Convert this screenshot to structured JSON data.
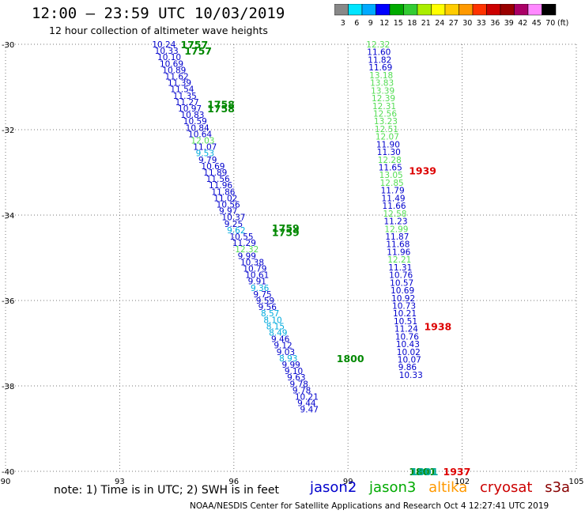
{
  "header": {
    "title": "12:00 – 23:59 UTC 10/03/2019",
    "subtitle": "12 hour collection of altimeter wave heights"
  },
  "color_scale": {
    "labels": [
      "3",
      "6",
      "9",
      "12",
      "15",
      "18",
      "21",
      "24",
      "27",
      "30",
      "33",
      "36",
      "39",
      "42",
      "45",
      "70"
    ],
    "unit": "(ft)",
    "colors": [
      "#888888",
      "#00e5ff",
      "#00aaff",
      "#0000ff",
      "#00aa00",
      "#33cc33",
      "#aaee00",
      "#ffff00",
      "#ffcc00",
      "#ff9900",
      "#ff3300",
      "#cc0000",
      "#990000",
      "#aa0066",
      "#ff88ff",
      "#000000"
    ]
  },
  "footer": {
    "note": "note:  1) Time is in UTC;  2) SWH is in feet",
    "credit": "NOAA/NESDIS Center for Satellite Applications and Research     Oct  4 12:27:41 UTC 2019",
    "legend": [
      {
        "label": "jason2",
        "color": "#0000cc"
      },
      {
        "label": "jason3",
        "color": "#00aa00"
      },
      {
        "label": "altika",
        "color": "#ff9900"
      },
      {
        "label": "cryosat",
        "color": "#cc0000"
      },
      {
        "label": "s3a",
        "color": "#880000"
      }
    ]
  },
  "chart_data": {
    "type": "scatter",
    "title": "",
    "xlabel": "",
    "ylabel": "",
    "xlim": [
      90,
      105
    ],
    "ylim": [
      -40,
      -30
    ],
    "x_ticks": [
      "90",
      "93",
      "96",
      "99",
      "102",
      "105"
    ],
    "y_ticks": [
      "-30",
      "-32",
      "-34",
      "-36",
      "-38",
      "-40"
    ],
    "grid": "dotted",
    "swh_colors": {
      "lt12": "#0000cc",
      "12to15": "#55dd55",
      "lt9": "#00aadd"
    },
    "time_labels": [
      {
        "text": "1757",
        "lon": 94.6,
        "lat": -30.0,
        "color": "#008800"
      },
      {
        "text": "1757",
        "lon": 94.7,
        "lat": -30.15,
        "color": "#008800"
      },
      {
        "text": "1758",
        "lon": 95.3,
        "lat": -31.4,
        "color": "#008800"
      },
      {
        "text": "1758",
        "lon": 95.3,
        "lat": -31.5,
        "color": "#008800"
      },
      {
        "text": "1759",
        "lon": 97.0,
        "lat": -34.3,
        "color": "#008800"
      },
      {
        "text": "1759",
        "lon": 97.0,
        "lat": -34.4,
        "color": "#008800"
      },
      {
        "text": "1800",
        "lon": 98.7,
        "lat": -37.35,
        "color": "#008800"
      },
      {
        "text": "1801",
        "lon": 100.6,
        "lat": -40.0,
        "color": "#008800"
      },
      {
        "text": "1801",
        "lon": 100.65,
        "lat": -40.0,
        "color": "#00aa99"
      },
      {
        "text": "1937",
        "lon": 101.5,
        "lat": -40.0,
        "color": "#dd0000"
      },
      {
        "text": "1938",
        "lon": 101.0,
        "lat": -36.6,
        "color": "#dd0000"
      },
      {
        "text": "1939",
        "lon": 100.6,
        "lat": -32.95,
        "color": "#dd0000"
      }
    ],
    "series": [
      {
        "name": "jason3",
        "points": [
          {
            "lon": 93.85,
            "lat": -30.0,
            "v": "10.24",
            "c": "#0000cc"
          },
          {
            "lon": 93.92,
            "lat": -30.15,
            "v": "10.33",
            "c": "#0000cc"
          },
          {
            "lon": 93.99,
            "lat": -30.3,
            "v": "10.10",
            "c": "#0000cc"
          },
          {
            "lon": 94.05,
            "lat": -30.45,
            "v": "10.69",
            "c": "#0000cc"
          },
          {
            "lon": 94.12,
            "lat": -30.6,
            "v": "10.89",
            "c": "#0000cc"
          },
          {
            "lon": 94.19,
            "lat": -30.75,
            "v": "11.62",
            "c": "#0000cc"
          },
          {
            "lon": 94.26,
            "lat": -30.9,
            "v": "11.39",
            "c": "#0000cc"
          },
          {
            "lon": 94.33,
            "lat": -31.05,
            "v": "11.54",
            "c": "#0000cc"
          },
          {
            "lon": 94.4,
            "lat": -31.2,
            "v": "11.35",
            "c": "#0000cc"
          },
          {
            "lon": 94.46,
            "lat": -31.35,
            "v": "11.27",
            "c": "#0000cc"
          },
          {
            "lon": 94.53,
            "lat": -31.5,
            "v": "10.97",
            "c": "#0000cc"
          },
          {
            "lon": 94.6,
            "lat": -31.65,
            "v": "10.83",
            "c": "#0000cc"
          },
          {
            "lon": 94.67,
            "lat": -31.8,
            "v": "10.59",
            "c": "#0000cc"
          },
          {
            "lon": 94.73,
            "lat": -31.95,
            "v": "10.84",
            "c": "#0000cc"
          },
          {
            "lon": 94.8,
            "lat": -32.1,
            "v": "10.64",
            "c": "#0000cc"
          },
          {
            "lon": 94.87,
            "lat": -32.25,
            "v": "12.03",
            "c": "#55dd55"
          },
          {
            "lon": 94.93,
            "lat": -32.4,
            "v": "11.07",
            "c": "#0000cc"
          },
          {
            "lon": 95.0,
            "lat": -32.55,
            "v": "9.53",
            "c": "#00aadd"
          },
          {
            "lon": 95.07,
            "lat": -32.7,
            "v": "9.79",
            "c": "#0000cc"
          },
          {
            "lon": 95.14,
            "lat": -32.85,
            "v": "10.69",
            "c": "#0000cc"
          },
          {
            "lon": 95.2,
            "lat": -33.0,
            "v": "11.89",
            "c": "#0000cc"
          },
          {
            "lon": 95.27,
            "lat": -33.15,
            "v": "11.56",
            "c": "#0000cc"
          },
          {
            "lon": 95.34,
            "lat": -33.3,
            "v": "11.96",
            "c": "#0000cc"
          },
          {
            "lon": 95.41,
            "lat": -33.45,
            "v": "11.86",
            "c": "#0000cc"
          },
          {
            "lon": 95.47,
            "lat": -33.6,
            "v": "11.02",
            "c": "#0000cc"
          },
          {
            "lon": 95.54,
            "lat": -33.75,
            "v": "10.56",
            "c": "#0000cc"
          },
          {
            "lon": 95.61,
            "lat": -33.9,
            "v": "9.97",
            "c": "#0000cc"
          },
          {
            "lon": 95.68,
            "lat": -34.05,
            "v": "10.37",
            "c": "#0000cc"
          },
          {
            "lon": 95.75,
            "lat": -34.2,
            "v": "9.25",
            "c": "#0000cc"
          },
          {
            "lon": 95.82,
            "lat": -34.35,
            "v": "9.62",
            "c": "#00aadd"
          },
          {
            "lon": 95.89,
            "lat": -34.5,
            "v": "10.55",
            "c": "#0000cc"
          },
          {
            "lon": 95.96,
            "lat": -34.65,
            "v": "11.29",
            "c": "#0000cc"
          },
          {
            "lon": 96.03,
            "lat": -34.8,
            "v": "12.32",
            "c": "#55dd55"
          },
          {
            "lon": 96.1,
            "lat": -34.95,
            "v": "9.99",
            "c": "#0000cc"
          },
          {
            "lon": 96.17,
            "lat": -35.1,
            "v": "10.38",
            "c": "#0000cc"
          },
          {
            "lon": 96.24,
            "lat": -35.25,
            "v": "10.79",
            "c": "#0000cc"
          },
          {
            "lon": 96.3,
            "lat": -35.4,
            "v": "10.61",
            "c": "#0000cc"
          },
          {
            "lon": 96.37,
            "lat": -35.55,
            "v": "9.91",
            "c": "#0000cc"
          },
          {
            "lon": 96.44,
            "lat": -35.7,
            "v": "9.36",
            "c": "#00aadd"
          },
          {
            "lon": 96.51,
            "lat": -35.85,
            "v": "9.75",
            "c": "#0000cc"
          },
          {
            "lon": 96.58,
            "lat": -36.0,
            "v": "9.59",
            "c": "#0000cc"
          },
          {
            "lon": 96.64,
            "lat": -36.15,
            "v": "9.56",
            "c": "#0000cc"
          },
          {
            "lon": 96.71,
            "lat": -36.3,
            "v": "8.57",
            "c": "#00aadd"
          },
          {
            "lon": 96.78,
            "lat": -36.45,
            "v": "8.10",
            "c": "#00aadd"
          },
          {
            "lon": 96.85,
            "lat": -36.6,
            "v": "8.15",
            "c": "#00aadd"
          },
          {
            "lon": 96.92,
            "lat": -36.75,
            "v": "8.49",
            "c": "#00aadd"
          },
          {
            "lon": 96.98,
            "lat": -36.9,
            "v": "9.46",
            "c": "#0000cc"
          },
          {
            "lon": 97.05,
            "lat": -37.05,
            "v": "9.12",
            "c": "#0000cc"
          },
          {
            "lon": 97.12,
            "lat": -37.2,
            "v": "9.03",
            "c": "#0000cc"
          },
          {
            "lon": 97.19,
            "lat": -37.35,
            "v": "8.93",
            "c": "#00aadd"
          },
          {
            "lon": 97.26,
            "lat": -37.5,
            "v": "9.99",
            "c": "#0000cc"
          },
          {
            "lon": 97.33,
            "lat": -37.65,
            "v": "9.10",
            "c": "#0000cc"
          },
          {
            "lon": 97.4,
            "lat": -37.8,
            "v": "9.63",
            "c": "#0000cc"
          },
          {
            "lon": 97.47,
            "lat": -37.95,
            "v": "9.78",
            "c": "#0000cc"
          },
          {
            "lon": 97.54,
            "lat": -38.1,
            "v": "9.78",
            "c": "#0000cc"
          },
          {
            "lon": 97.6,
            "lat": -38.25,
            "v": "10.21",
            "c": "#0000cc"
          },
          {
            "lon": 97.67,
            "lat": -38.4,
            "v": "9.44",
            "c": "#0000cc"
          },
          {
            "lon": 97.74,
            "lat": -38.55,
            "v": "9.47",
            "c": "#0000cc"
          }
        ]
      },
      {
        "name": "cryosat",
        "points": [
          {
            "lon": 99.48,
            "lat": -30.0,
            "v": "12.32",
            "c": "#55dd55"
          },
          {
            "lon": 99.5,
            "lat": -30.18,
            "v": "11.60",
            "c": "#0000cc"
          },
          {
            "lon": 99.52,
            "lat": -30.36,
            "v": "11.82",
            "c": "#0000cc"
          },
          {
            "lon": 99.54,
            "lat": -30.54,
            "v": "11.69",
            "c": "#0000cc"
          },
          {
            "lon": 99.56,
            "lat": -30.72,
            "v": "13.18",
            "c": "#55dd55"
          },
          {
            "lon": 99.58,
            "lat": -30.9,
            "v": "13.83",
            "c": "#55dd55"
          },
          {
            "lon": 99.6,
            "lat": -31.08,
            "v": "13.39",
            "c": "#55dd55"
          },
          {
            "lon": 99.62,
            "lat": -31.26,
            "v": "12.39",
            "c": "#55dd55"
          },
          {
            "lon": 99.64,
            "lat": -31.44,
            "v": "12.31",
            "c": "#55dd55"
          },
          {
            "lon": 99.66,
            "lat": -31.62,
            "v": "12.56",
            "c": "#55dd55"
          },
          {
            "lon": 99.68,
            "lat": -31.8,
            "v": "13.23",
            "c": "#55dd55"
          },
          {
            "lon": 99.7,
            "lat": -31.98,
            "v": "12.51",
            "c": "#55dd55"
          },
          {
            "lon": 99.72,
            "lat": -32.16,
            "v": "12.07",
            "c": "#55dd55"
          },
          {
            "lon": 99.74,
            "lat": -32.34,
            "v": "11.90",
            "c": "#0000cc"
          },
          {
            "lon": 99.76,
            "lat": -32.52,
            "v": "11.30",
            "c": "#0000cc"
          },
          {
            "lon": 99.78,
            "lat": -32.7,
            "v": "12.28",
            "c": "#55dd55"
          },
          {
            "lon": 99.8,
            "lat": -32.88,
            "v": "11.65",
            "c": "#0000cc"
          },
          {
            "lon": 99.82,
            "lat": -33.06,
            "v": "13.05",
            "c": "#55dd55"
          },
          {
            "lon": 99.84,
            "lat": -33.24,
            "v": "12.85",
            "c": "#55dd55"
          },
          {
            "lon": 99.86,
            "lat": -33.42,
            "v": "11.79",
            "c": "#0000cc"
          },
          {
            "lon": 99.88,
            "lat": -33.6,
            "v": "11.49",
            "c": "#0000cc"
          },
          {
            "lon": 99.9,
            "lat": -33.78,
            "v": "11.66",
            "c": "#0000cc"
          },
          {
            "lon": 99.92,
            "lat": -33.96,
            "v": "12.58",
            "c": "#55dd55"
          },
          {
            "lon": 99.94,
            "lat": -34.14,
            "v": "11.23",
            "c": "#0000cc"
          },
          {
            "lon": 99.96,
            "lat": -34.32,
            "v": "12.99",
            "c": "#55dd55"
          },
          {
            "lon": 99.98,
            "lat": -34.5,
            "v": "11.87",
            "c": "#0000cc"
          },
          {
            "lon": 100.0,
            "lat": -34.68,
            "v": "11.68",
            "c": "#0000cc"
          },
          {
            "lon": 100.02,
            "lat": -34.86,
            "v": "11.96",
            "c": "#0000cc"
          },
          {
            "lon": 100.04,
            "lat": -35.04,
            "v": "12.21",
            "c": "#55dd55"
          },
          {
            "lon": 100.06,
            "lat": -35.22,
            "v": "11.31",
            "c": "#0000cc"
          },
          {
            "lon": 100.08,
            "lat": -35.4,
            "v": "10.76",
            "c": "#0000cc"
          },
          {
            "lon": 100.1,
            "lat": -35.58,
            "v": "10.57",
            "c": "#0000cc"
          },
          {
            "lon": 100.12,
            "lat": -35.76,
            "v": "10.69",
            "c": "#0000cc"
          },
          {
            "lon": 100.14,
            "lat": -35.94,
            "v": "10.92",
            "c": "#0000cc"
          },
          {
            "lon": 100.16,
            "lat": -36.12,
            "v": "10.73",
            "c": "#0000cc"
          },
          {
            "lon": 100.18,
            "lat": -36.3,
            "v": "10.21",
            "c": "#0000cc"
          },
          {
            "lon": 100.2,
            "lat": -36.48,
            "v": "10.51",
            "c": "#0000cc"
          },
          {
            "lon": 100.22,
            "lat": -36.66,
            "v": "11.24",
            "c": "#0000cc"
          },
          {
            "lon": 100.24,
            "lat": -36.84,
            "v": "10.76",
            "c": "#0000cc"
          },
          {
            "lon": 100.26,
            "lat": -37.02,
            "v": "10.43",
            "c": "#0000cc"
          },
          {
            "lon": 100.28,
            "lat": -37.2,
            "v": "10.02",
            "c": "#0000cc"
          },
          {
            "lon": 100.3,
            "lat": -37.38,
            "v": "10.07",
            "c": "#0000cc"
          },
          {
            "lon": 100.32,
            "lat": -37.56,
            "v": "9.86",
            "c": "#0000cc"
          },
          {
            "lon": 100.34,
            "lat": -37.74,
            "v": "10.33",
            "c": "#0000cc"
          }
        ]
      }
    ]
  }
}
